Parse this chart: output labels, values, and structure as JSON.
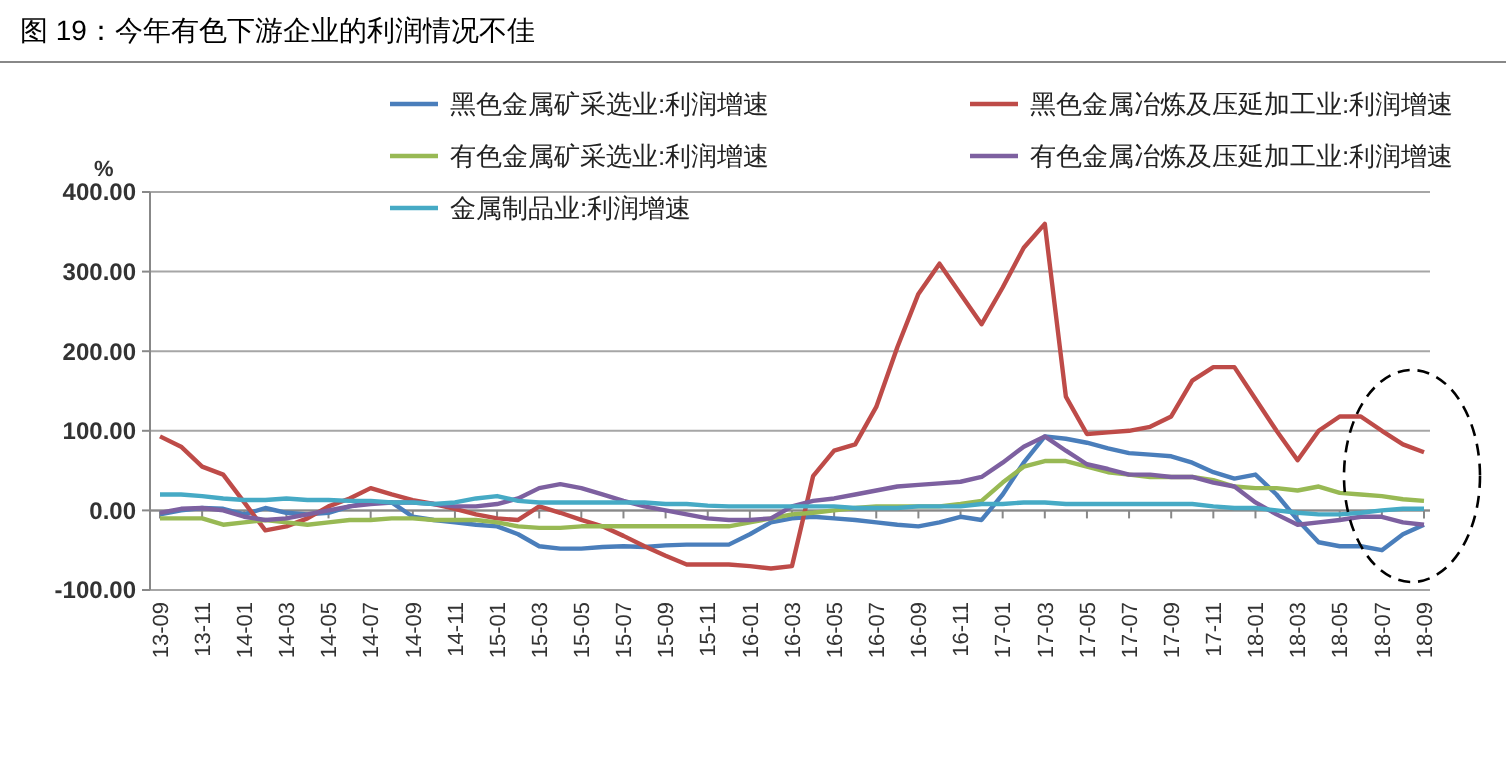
{
  "chart_data": {
    "type": "line",
    "title": "图 19：今年有色下游企业的利润情况不佳",
    "ylabel": "%",
    "categories": [
      "13-09",
      null,
      "13-11",
      null,
      "14-01",
      null,
      "14-03",
      null,
      "14-05",
      null,
      "14-07",
      null,
      "14-09",
      null,
      "14-11",
      null,
      "15-01",
      null,
      "15-03",
      null,
      "15-05",
      null,
      "15-07",
      null,
      "15-09",
      null,
      "15-11",
      null,
      "16-01",
      null,
      "16-03",
      null,
      "16-05",
      null,
      "16-07",
      null,
      "16-09",
      null,
      "16-11",
      null,
      "17-01",
      null,
      "17-03",
      null,
      "17-05",
      null,
      "17-07",
      null,
      "17-09",
      null,
      "17-11",
      null,
      "18-01",
      null,
      "18-03",
      null,
      "18-05",
      null,
      "18-07",
      null,
      "18-09"
    ],
    "series": [
      {
        "name": "黑色金属矿采选业:利润增速",
        "color": "#4a7ebb",
        "values": [
          -5,
          0,
          3,
          2,
          -5,
          3,
          -3,
          -5,
          -3,
          5,
          10,
          10,
          -8,
          -12,
          -15,
          -18,
          -20,
          -30,
          -45,
          -48,
          -48,
          -46,
          -45,
          -46,
          -44,
          -43,
          -43,
          -43,
          -30,
          -15,
          -10,
          -8,
          -10,
          -12,
          -15,
          -18,
          -20,
          -15,
          -8,
          -12,
          20,
          60,
          93,
          90,
          85,
          78,
          72,
          70,
          68,
          60,
          48,
          40,
          45,
          20,
          -12,
          -40,
          -45,
          -45,
          -50,
          -30,
          -18
        ]
      },
      {
        "name": "黑色金属冶炼及压延加工业:利润增速",
        "color": "#be4b48",
        "values": [
          93,
          80,
          55,
          45,
          10,
          -25,
          -20,
          -10,
          5,
          15,
          28,
          20,
          13,
          8,
          2,
          -5,
          -10,
          -12,
          5,
          -3,
          -12,
          -20,
          -32,
          -45,
          -57,
          -68,
          -68,
          -68,
          -70,
          -73,
          -70,
          43,
          75,
          83,
          130,
          205,
          272,
          310,
          272,
          234,
          280,
          330,
          360,
          143,
          96,
          98,
          100,
          105,
          118,
          163,
          180,
          180,
          140,
          100,
          63,
          100,
          118,
          118,
          100,
          83,
          73
        ]
      },
      {
        "name": "有色金属矿采选业:利润增速",
        "color": "#98b954",
        "values": [
          -10,
          -10,
          -10,
          -18,
          -15,
          -12,
          -15,
          -18,
          -15,
          -12,
          -12,
          -10,
          -10,
          -12,
          -12,
          -12,
          -15,
          -20,
          -22,
          -22,
          -20,
          -20,
          -20,
          -20,
          -20,
          -20,
          -20,
          -20,
          -15,
          -10,
          -5,
          -3,
          0,
          3,
          5,
          5,
          5,
          5,
          8,
          12,
          35,
          55,
          62,
          62,
          55,
          48,
          45,
          42,
          42,
          42,
          38,
          30,
          28,
          28,
          25,
          30,
          22,
          20,
          18,
          14,
          12
        ]
      },
      {
        "name": "有色金属冶炼及压延加工业:利润增速",
        "color": "#7d60a0",
        "values": [
          -3,
          2,
          3,
          0,
          -8,
          -12,
          -10,
          -5,
          0,
          5,
          8,
          10,
          10,
          8,
          5,
          5,
          8,
          15,
          28,
          33,
          28,
          20,
          12,
          5,
          0,
          -5,
          -10,
          -12,
          -12,
          -10,
          5,
          12,
          15,
          20,
          25,
          30,
          32,
          34,
          36,
          42,
          60,
          80,
          93,
          75,
          58,
          52,
          45,
          45,
          42,
          42,
          35,
          30,
          10,
          -5,
          -18,
          -15,
          -12,
          -8,
          -8,
          -15,
          -18
        ]
      },
      {
        "name": "金属制品业:利润增速",
        "color": "#46aac5",
        "values": [
          20,
          20,
          18,
          15,
          13,
          13,
          15,
          13,
          13,
          12,
          12,
          10,
          10,
          8,
          10,
          15,
          18,
          12,
          10,
          10,
          10,
          10,
          10,
          10,
          8,
          8,
          6,
          5,
          5,
          5,
          5,
          5,
          5,
          3,
          3,
          3,
          5,
          5,
          5,
          8,
          8,
          10,
          10,
          8,
          8,
          8,
          8,
          8,
          8,
          8,
          5,
          3,
          3,
          0,
          -3,
          -5,
          -5,
          -3,
          0,
          2,
          2
        ]
      }
    ],
    "ylim": [
      -100,
      400
    ],
    "yticks": [
      {
        "value": -100,
        "label": "-100.00"
      },
      {
        "value": 0,
        "label": "0.00"
      },
      {
        "value": 100,
        "label": "100.00"
      },
      {
        "value": 200,
        "label": "200.00"
      },
      {
        "value": 300,
        "label": "300.00"
      },
      {
        "value": 400,
        "label": "400.00"
      }
    ],
    "grid": "y",
    "legend": "top",
    "marker": "none",
    "line_style": "solid"
  }
}
